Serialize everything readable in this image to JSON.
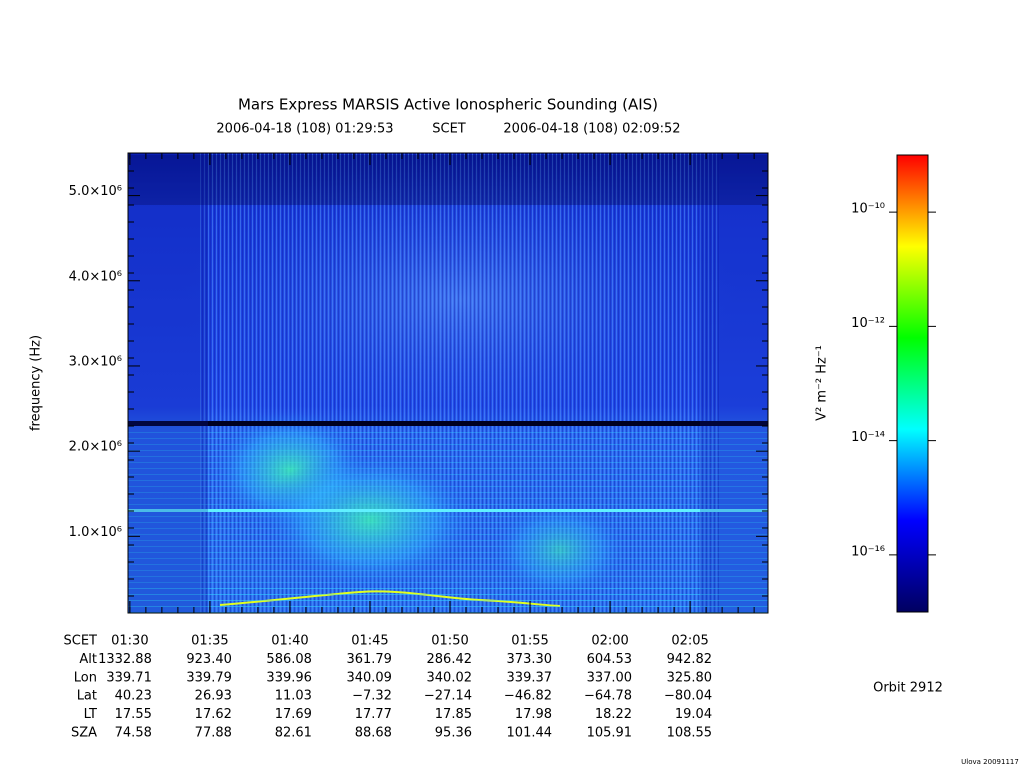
{
  "chart_data": {
    "type": "spectrogram",
    "title": "Mars Express MARSIS Active Ionospheric Sounding (AIS)",
    "time_start": "2006-04-18 (108) 01:29:53",
    "time_system": "SCET",
    "time_end": "2006-04-18 (108) 02:09:52",
    "ylabel": "frequency (Hz)",
    "ylim": [
      100000,
      5500000
    ],
    "yticks": [
      {
        "value": 1000000,
        "label": "1.0×10⁶"
      },
      {
        "value": 2000000,
        "label": "2.0×10⁶"
      },
      {
        "value": 3000000,
        "label": "3.0×10⁶"
      },
      {
        "value": 4000000,
        "label": "4.0×10⁶"
      },
      {
        "value": 5000000,
        "label": "5.0×10⁶"
      }
    ],
    "colorbar": {
      "label": "V² m⁻² Hz⁻¹",
      "log_scale": true,
      "lim": [
        1e-17,
        1e-09
      ],
      "ticks": [
        {
          "value": 1e-16,
          "label": "10⁻¹⁶"
        },
        {
          "value": 1e-14,
          "label": "10⁻¹⁴"
        },
        {
          "value": 1e-12,
          "label": "10⁻¹²"
        },
        {
          "value": 1e-10,
          "label": "10⁻¹⁰"
        }
      ],
      "colors": [
        "#000060",
        "#0000ff",
        "#00ffff",
        "#00ff00",
        "#ffff00",
        "#ff0000"
      ]
    },
    "ephemeris": [
      {
        "label": "SCET",
        "values": [
          "01:30",
          "01:35",
          "01:40",
          "01:45",
          "01:50",
          "01:55",
          "02:00",
          "02:05"
        ]
      },
      {
        "label": "Alt",
        "values": [
          "1332.88",
          "923.40",
          "586.08",
          "361.79",
          "286.42",
          "373.30",
          "604.53",
          "942.82"
        ]
      },
      {
        "label": "Lon",
        "values": [
          "339.71",
          "339.79",
          "339.96",
          "340.09",
          "340.02",
          "339.37",
          "337.00",
          "325.80"
        ]
      },
      {
        "label": "Lat",
        "values": [
          "40.23",
          "26.93",
          "11.03",
          "−7.32",
          "−27.14",
          "−46.82",
          "−64.78",
          "−80.04"
        ]
      },
      {
        "label": "LT",
        "values": [
          "17.55",
          "17.62",
          "17.69",
          "17.77",
          "17.85",
          "17.98",
          "18.22",
          "19.04"
        ]
      },
      {
        "label": "SZA",
        "values": [
          "74.58",
          "77.88",
          "82.61",
          "88.68",
          "95.36",
          "101.44",
          "105.91",
          "108.55"
        ]
      }
    ],
    "orbit": "Orbit 2912",
    "footer": "Ulova 20091117"
  }
}
